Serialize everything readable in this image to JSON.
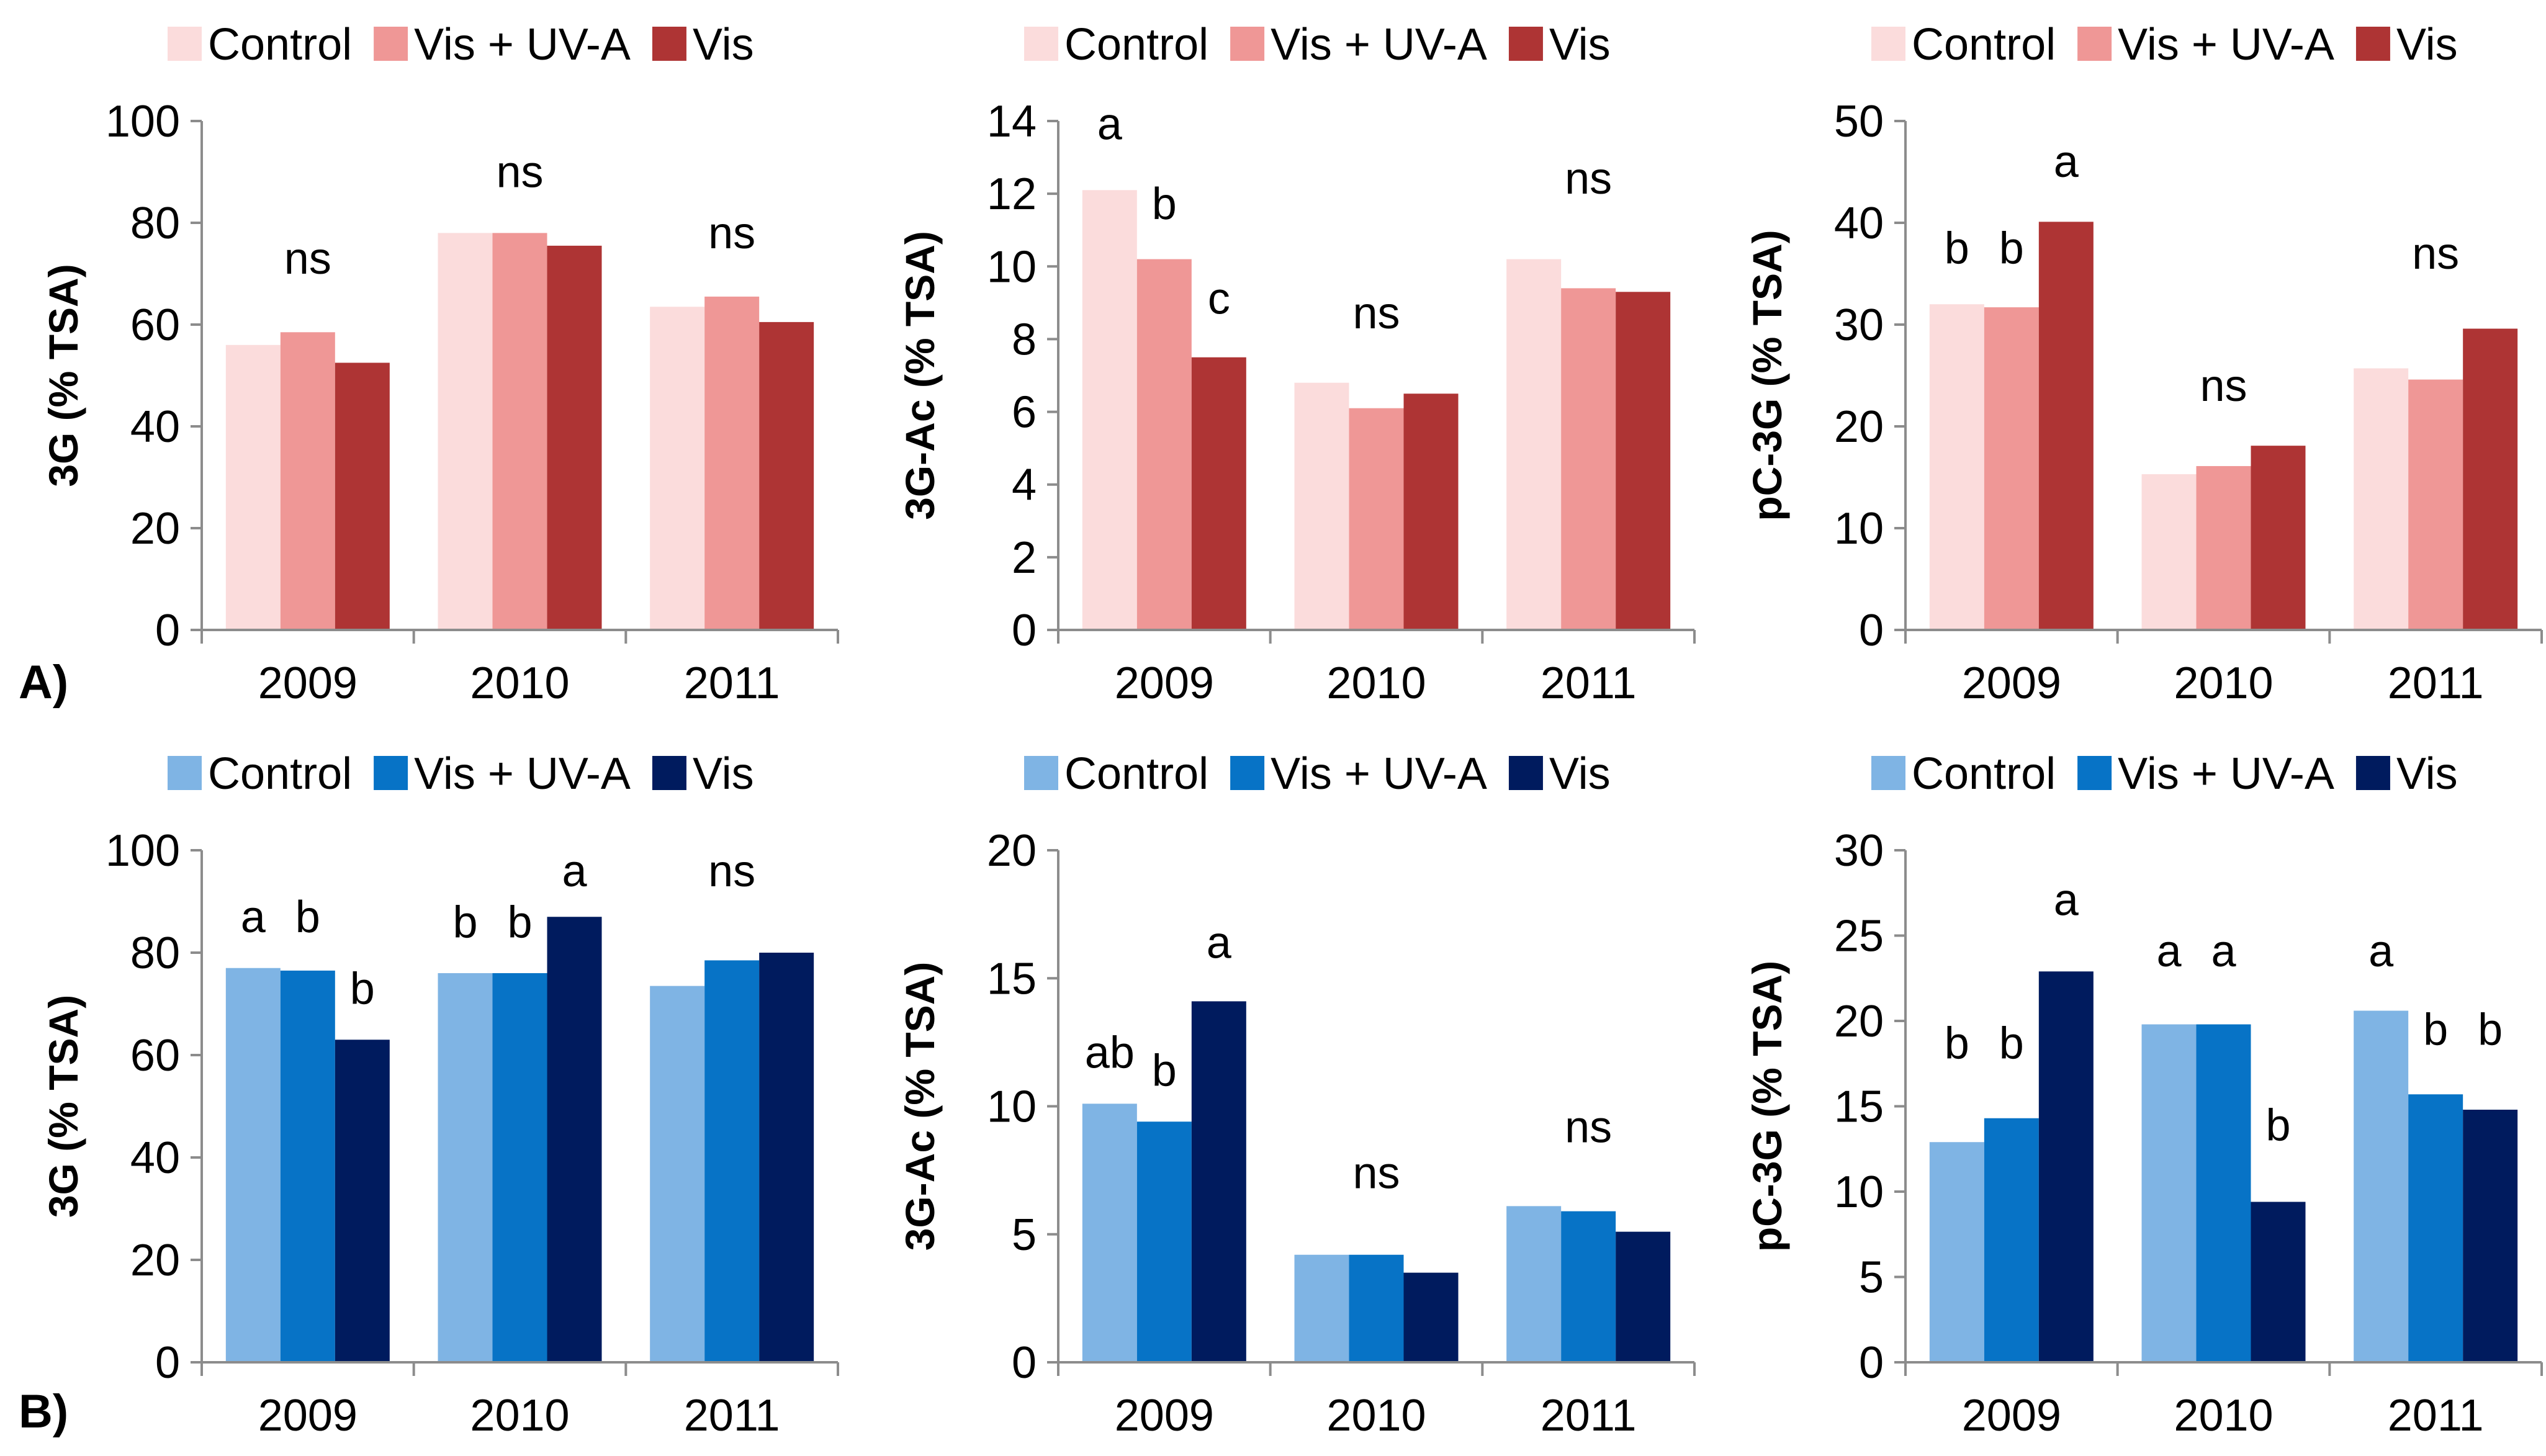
{
  "figure": {
    "panel_labels": [
      "A)",
      "B)"
    ],
    "palettes": {
      "red": [
        "#fbdcdc",
        "#ef9796",
        "#ae3434"
      ],
      "blue": [
        "#7fb4e4",
        "#0773c6",
        "#001b5e"
      ]
    }
  },
  "chart_data": [
    {
      "type": "bar",
      "row": 0,
      "col": 0,
      "palette": "red",
      "title": "",
      "xlabel": "",
      "ylabel": "3G (% TSA)",
      "categories": [
        "2009",
        "2010",
        "2011"
      ],
      "series": [
        {
          "name": "Control",
          "values": [
            56,
            78,
            63.5
          ]
        },
        {
          "name": "Vis + UV-A",
          "values": [
            58.5,
            78,
            65.5
          ]
        },
        {
          "name": "Vis",
          "values": [
            52.5,
            75.5,
            60.5
          ]
        }
      ],
      "ylim": [
        0,
        100
      ],
      "yticks": [
        0,
        20,
        40,
        60,
        80,
        100
      ],
      "legend": "top",
      "annotations": [
        {
          "category": 0,
          "series": "group",
          "text": "ns",
          "y": 70
        },
        {
          "category": 1,
          "series": "group",
          "text": "ns",
          "y": 87
        },
        {
          "category": 2,
          "series": "group",
          "text": "ns",
          "y": 75
        }
      ]
    },
    {
      "type": "bar",
      "row": 0,
      "col": 1,
      "palette": "red",
      "title": "",
      "xlabel": "",
      "ylabel": "3G-Ac (% TSA)",
      "categories": [
        "2009",
        "2010",
        "2011"
      ],
      "series": [
        {
          "name": "Control",
          "values": [
            12.1,
            6.8,
            10.2
          ]
        },
        {
          "name": "Vis + UV-A",
          "values": [
            10.2,
            6.1,
            9.4
          ]
        },
        {
          "name": "Vis",
          "values": [
            7.5,
            6.5,
            9.3
          ]
        }
      ],
      "ylim": [
        0,
        14
      ],
      "yticks": [
        0,
        2,
        4,
        6,
        8,
        10,
        12,
        14
      ],
      "legend": "top",
      "annotations": [
        {
          "category": 0,
          "series": 0,
          "text": "a",
          "y": 13.5
        },
        {
          "category": 0,
          "series": 1,
          "text": "b",
          "y": 11.3
        },
        {
          "category": 0,
          "series": 2,
          "text": "c",
          "y": 8.7
        },
        {
          "category": 1,
          "series": "group",
          "text": "ns",
          "y": 8.3
        },
        {
          "category": 2,
          "series": "group",
          "text": "ns",
          "y": 12.0
        }
      ]
    },
    {
      "type": "bar",
      "row": 0,
      "col": 2,
      "palette": "red",
      "title": "",
      "xlabel": "",
      "ylabel": "pC-3G (% TSA)",
      "categories": [
        "2009",
        "2010",
        "2011"
      ],
      "series": [
        {
          "name": "Control",
          "values": [
            32,
            15.3,
            25.7
          ]
        },
        {
          "name": "Vis + UV-A",
          "values": [
            31.7,
            16.1,
            24.6
          ]
        },
        {
          "name": "Vis",
          "values": [
            40.1,
            18.1,
            29.6
          ]
        }
      ],
      "ylim": [
        0,
        50
      ],
      "yticks": [
        0,
        10,
        20,
        30,
        40,
        50
      ],
      "legend": "top",
      "annotations": [
        {
          "category": 0,
          "series": 0,
          "text": "b",
          "y": 36
        },
        {
          "category": 0,
          "series": 1,
          "text": "b",
          "y": 36
        },
        {
          "category": 0,
          "series": 2,
          "text": "a",
          "y": 44.5
        },
        {
          "category": 1,
          "series": "group",
          "text": "ns",
          "y": 22.5
        },
        {
          "category": 2,
          "series": "group",
          "text": "ns",
          "y": 35.5
        }
      ]
    },
    {
      "type": "bar",
      "row": 1,
      "col": 0,
      "palette": "blue",
      "title": "",
      "xlabel": "",
      "ylabel": "3G (% TSA)",
      "categories": [
        "2009",
        "2010",
        "2011"
      ],
      "series": [
        {
          "name": "Control",
          "values": [
            77,
            76,
            73.5
          ]
        },
        {
          "name": "Vis + UV-A",
          "values": [
            76.5,
            76,
            78.5
          ]
        },
        {
          "name": "Vis",
          "values": [
            63,
            87,
            80
          ]
        }
      ],
      "ylim": [
        0,
        100
      ],
      "yticks": [
        0,
        20,
        40,
        60,
        80,
        100
      ],
      "legend": "top",
      "annotations": [
        {
          "category": 0,
          "series": 0,
          "text": "a",
          "y": 84
        },
        {
          "category": 0,
          "series": 1,
          "text": "b",
          "y": 84
        },
        {
          "category": 0,
          "series": 2,
          "text": "b",
          "y": 70
        },
        {
          "category": 1,
          "series": 0,
          "text": "b",
          "y": 83
        },
        {
          "category": 1,
          "series": 1,
          "text": "b",
          "y": 83
        },
        {
          "category": 1,
          "series": 2,
          "text": "a",
          "y": 93
        },
        {
          "category": 2,
          "series": "group",
          "text": "ns",
          "y": 93
        }
      ]
    },
    {
      "type": "bar",
      "row": 1,
      "col": 1,
      "palette": "blue",
      "title": "",
      "xlabel": "",
      "ylabel": "3G-Ac (% TSA)",
      "categories": [
        "2009",
        "2010",
        "2011"
      ],
      "series": [
        {
          "name": "Control",
          "values": [
            10.1,
            4.2,
            6.1
          ]
        },
        {
          "name": "Vis + UV-A",
          "values": [
            9.4,
            4.2,
            5.9
          ]
        },
        {
          "name": "Vis",
          "values": [
            14.1,
            3.5,
            5.1
          ]
        }
      ],
      "ylim": [
        0,
        20
      ],
      "yticks": [
        0,
        5,
        10,
        15,
        20
      ],
      "legend": "top",
      "annotations": [
        {
          "category": 0,
          "series": 0,
          "text": "ab",
          "y": 11.5
        },
        {
          "category": 0,
          "series": 1,
          "text": "b",
          "y": 10.8
        },
        {
          "category": 0,
          "series": 2,
          "text": "a",
          "y": 15.8
        },
        {
          "category": 1,
          "series": "group",
          "text": "ns",
          "y": 6.8
        },
        {
          "category": 2,
          "series": "group",
          "text": "ns",
          "y": 8.6
        }
      ]
    },
    {
      "type": "bar",
      "row": 1,
      "col": 2,
      "palette": "blue",
      "title": "",
      "xlabel": "",
      "ylabel": "pC-3G (% TSA)",
      "categories": [
        "2009",
        "2010",
        "2011"
      ],
      "series": [
        {
          "name": "Control",
          "values": [
            12.9,
            19.8,
            20.6
          ]
        },
        {
          "name": "Vis + UV-A",
          "values": [
            14.3,
            19.8,
            15.7
          ]
        },
        {
          "name": "Vis",
          "values": [
            22.9,
            9.4,
            14.8
          ]
        }
      ],
      "ylim": [
        0,
        30
      ],
      "yticks": [
        0,
        5,
        10,
        15,
        20,
        25,
        30
      ],
      "legend": "top",
      "annotations": [
        {
          "category": 0,
          "series": 0,
          "text": "b",
          "y": 17.8
        },
        {
          "category": 0,
          "series": 1,
          "text": "b",
          "y": 17.8
        },
        {
          "category": 0,
          "series": 2,
          "text": "a",
          "y": 26.2
        },
        {
          "category": 1,
          "series": 0,
          "text": "a",
          "y": 23.2
        },
        {
          "category": 1,
          "series": 1,
          "text": "a",
          "y": 23.2
        },
        {
          "category": 1,
          "series": 2,
          "text": "b",
          "y": 13.0
        },
        {
          "category": 2,
          "series": 0,
          "text": "a",
          "y": 23.2
        },
        {
          "category": 2,
          "series": 1,
          "text": "b",
          "y": 18.6
        },
        {
          "category": 2,
          "series": 2,
          "text": "b",
          "y": 18.6
        }
      ]
    }
  ]
}
